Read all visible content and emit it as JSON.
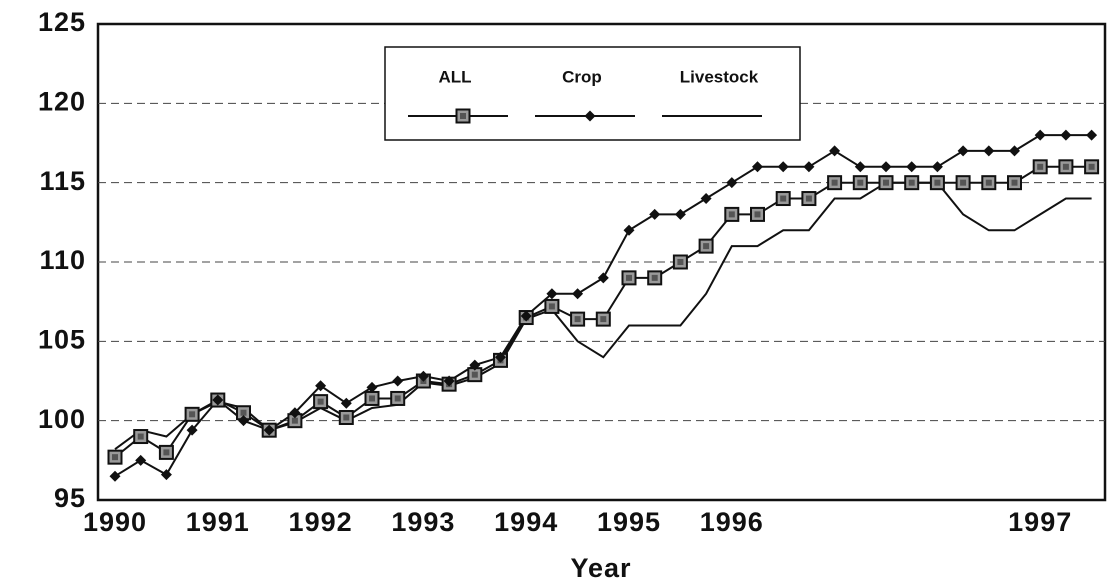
{
  "chart_data": {
    "type": "line",
    "xlabel": "Year",
    "categories": [
      "1990",
      null,
      null,
      null,
      "1991",
      null,
      null,
      null,
      "1992",
      null,
      null,
      null,
      "1993",
      null,
      null,
      null,
      "1994",
      null,
      null,
      null,
      "1995",
      null,
      null,
      null,
      "1996",
      null,
      null,
      null,
      null,
      null,
      null,
      null,
      null,
      null,
      null,
      null,
      "1997",
      null,
      null
    ],
    "series": [
      {
        "name": "ALL",
        "color": "#111111",
        "marker": "square",
        "values": [
          97.7,
          99,
          98,
          100.4,
          101.3,
          100.5,
          99.4,
          100,
          101.2,
          100.2,
          101.4,
          101.4,
          102.5,
          102.3,
          102.9,
          103.8,
          106.5,
          107.2,
          106.4,
          106.4,
          109,
          109,
          110,
          111,
          113,
          113,
          114,
          114,
          115,
          115,
          115,
          115,
          115,
          115,
          115,
          115,
          116,
          116,
          116
        ]
      },
      {
        "name": "Crop",
        "color": "#111111",
        "marker": "diamond",
        "values": [
          96.5,
          97.5,
          96.6,
          99.4,
          101.3,
          100,
          99.4,
          100.5,
          102.2,
          101.1,
          102.1,
          102.5,
          102.8,
          102.5,
          103.5,
          104,
          106.6,
          108,
          108,
          109,
          112,
          113,
          113,
          114,
          115,
          116,
          116,
          116,
          117,
          116,
          116,
          116,
          116,
          117,
          117,
          117,
          118,
          118,
          118
        ]
      },
      {
        "name": "Livestock",
        "color": "#111111",
        "marker": "none",
        "values": [
          98.2,
          99.4,
          99,
          100.4,
          101.2,
          100.8,
          99.4,
          99.9,
          100.8,
          100,
          100.8,
          101,
          102.4,
          102.2,
          102.7,
          103.6,
          106.4,
          107,
          105,
          104,
          106,
          106,
          106,
          108,
          111,
          111,
          112,
          112,
          114,
          114,
          115,
          115,
          115,
          113,
          112,
          112,
          113,
          114,
          114
        ]
      }
    ],
    "ylim": [
      95,
      125
    ],
    "yticks": [
      95,
      100,
      105,
      110,
      115,
      120,
      125
    ],
    "grid": true
  }
}
